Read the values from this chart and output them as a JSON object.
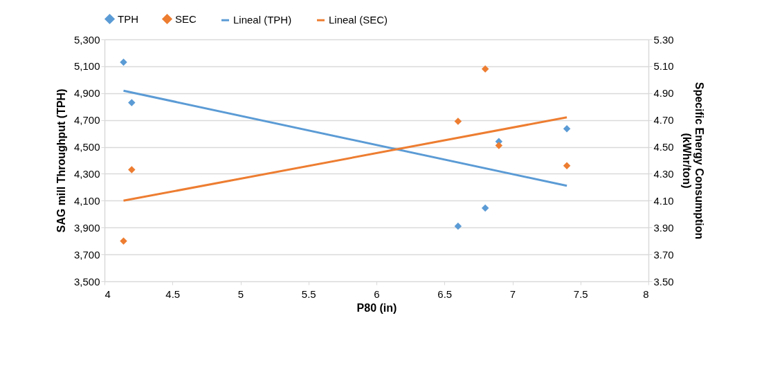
{
  "chart_data": {
    "type": "scatter",
    "xlabel": "P80 (in)",
    "ylabel": "SAG mill Throughput (TPH)",
    "y2label": "Specific Energy Consumption\n(kWhr/ton)",
    "series": [
      {
        "name": "TPH",
        "type": "scatter",
        "marker": "diamond",
        "color": "#5b9bd5",
        "x": [
          4.14,
          4.2,
          6.6,
          6.8,
          6.9,
          7.4
        ],
        "values": [
          5130,
          4830,
          3910,
          4045,
          4540,
          4635
        ]
      },
      {
        "name": "SEC",
        "type": "scatter",
        "marker": "diamond",
        "color": "#ed7d31",
        "axis": "y2",
        "x": [
          4.14,
          4.2,
          6.6,
          6.8,
          6.9,
          7.4
        ],
        "values": [
          3.8,
          4.33,
          4.69,
          5.08,
          4.51,
          4.36
        ]
      },
      {
        "name": "Lineal (TPH)",
        "type": "line",
        "marker": "none",
        "color": "#5b9bd5",
        "x": [
          4.14,
          7.4
        ],
        "values": [
          4918,
          4211
        ]
      },
      {
        "name": "Lineal (SEC)",
        "type": "line",
        "marker": "none",
        "color": "#ed7d31",
        "axis": "y2",
        "x": [
          4.14,
          7.4
        ],
        "values": [
          4.1,
          4.72
        ]
      }
    ],
    "xlim": [
      4,
      8
    ],
    "xticks": [
      4,
      4.5,
      5,
      5.5,
      6,
      6.5,
      7,
      7.5,
      8
    ],
    "ylim": [
      3500,
      5300
    ],
    "yticks": [
      {
        "value": 3500,
        "label": "3,500"
      },
      {
        "value": 3700,
        "label": "3,700"
      },
      {
        "value": 3900,
        "label": "3,900"
      },
      {
        "value": 4100,
        "label": "4,100"
      },
      {
        "value": 4300,
        "label": "4,300"
      },
      {
        "value": 4500,
        "label": "4,500"
      },
      {
        "value": 4700,
        "label": "4,700"
      },
      {
        "value": 4900,
        "label": "4,900"
      },
      {
        "value": 5100,
        "label": "5,100"
      },
      {
        "value": 5300,
        "label": "5,300"
      }
    ],
    "y2lim": [
      3.5,
      5.3
    ],
    "y2ticks": [
      {
        "value": 3.5,
        "label": "3.50"
      },
      {
        "value": 3.7,
        "label": "3.70"
      },
      {
        "value": 3.9,
        "label": "3.90"
      },
      {
        "value": 4.1,
        "label": "4.10"
      },
      {
        "value": 4.3,
        "label": "4.30"
      },
      {
        "value": 4.5,
        "label": "4.50"
      },
      {
        "value": 4.7,
        "label": "4.70"
      },
      {
        "value": 4.9,
        "label": "4.90"
      },
      {
        "value": 5.1,
        "label": "5.10"
      },
      {
        "value": 5.3,
        "label": "5.30"
      }
    ],
    "grid": "y",
    "legend": "top"
  }
}
